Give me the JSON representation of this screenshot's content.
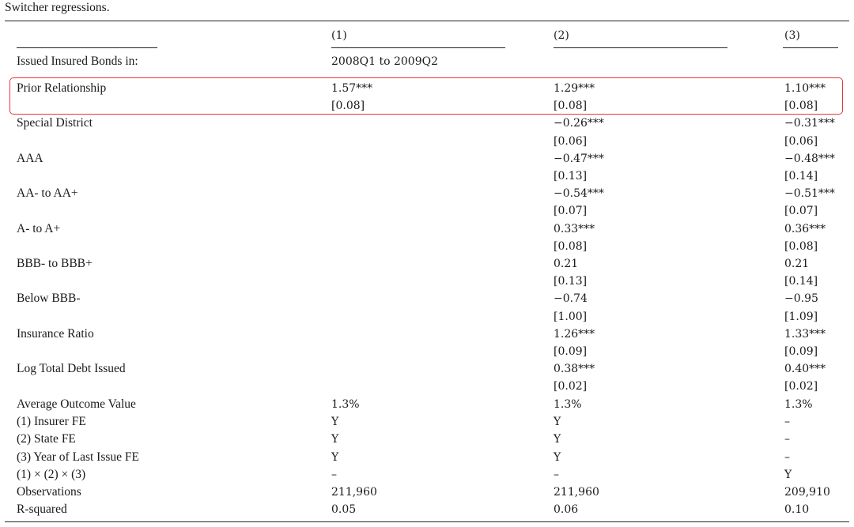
{
  "caption": "Switcher regressions.",
  "columns": [
    "(1)",
    "(2)",
    "(3)"
  ],
  "sample_label": "Issued Insured Bonds in:",
  "sample_value": "2008Q1 to 2009Q2",
  "colors": {
    "highlight": "#e0393e"
  },
  "rows": [
    {
      "label": "Prior Relationship",
      "c1": "1.57***",
      "c2": "1.29***",
      "c3": "1.10***",
      "se1": "[0.08]",
      "se2": "[0.08]",
      "se3": "[0.08]"
    },
    {
      "label": "Special District",
      "c1": "",
      "c2": "−0.26***",
      "c3": "−0.31***",
      "se1": "",
      "se2": "[0.06]",
      "se3": "[0.06]"
    },
    {
      "label": "AAA",
      "c1": "",
      "c2": "−0.47***",
      "c3": "−0.48***",
      "se1": "",
      "se2": "[0.13]",
      "se3": "[0.14]"
    },
    {
      "label": "AA- to AA+",
      "c1": "",
      "c2": "−0.54***",
      "c3": "−0.51***",
      "se1": "",
      "se2": "[0.07]",
      "se3": "[0.07]"
    },
    {
      "label": "A- to A+",
      "c1": "",
      "c2": "0.33***",
      "c3": "0.36***",
      "se1": "",
      "se2": "[0.08]",
      "se3": "[0.08]"
    },
    {
      "label": "BBB- to BBB+",
      "c1": "",
      "c2": "0.21",
      "c3": "0.21",
      "se1": "",
      "se2": "[0.13]",
      "se3": "[0.14]"
    },
    {
      "label": "Below BBB-",
      "c1": "",
      "c2": "−0.74",
      "c3": "−0.95",
      "se1": "",
      "se2": "[1.00]",
      "se3": "[1.09]"
    },
    {
      "label": "Insurance Ratio",
      "c1": "",
      "c2": "1.26***",
      "c3": "1.33***",
      "se1": "",
      "se2": "[0.09]",
      "se3": "[0.09]"
    },
    {
      "label": "Log Total Debt Issued",
      "c1": "",
      "c2": "0.38***",
      "c3": "0.40***",
      "se1": "",
      "se2": "[0.02]",
      "se3": "[0.02]"
    }
  ],
  "footer": [
    {
      "label": "Average Outcome Value",
      "c1": "1.3%",
      "c2": "1.3%",
      "c3": "1.3%"
    },
    {
      "label": "(1) Insurer FE",
      "c1": "Y",
      "c2": "Y",
      "c3": "–"
    },
    {
      "label": "(2) State FE",
      "c1": "Y",
      "c2": "Y",
      "c3": "–"
    },
    {
      "label": "(3) Year of Last Issue FE",
      "c1": "Y",
      "c2": "Y",
      "c3": "–"
    },
    {
      "label": "(1) × (2) × (3)",
      "c1": "–",
      "c2": "–",
      "c3": "Y"
    },
    {
      "label": "Observations",
      "c1": "211,960",
      "c2": "211,960",
      "c3": "209,910"
    },
    {
      "label": "R-squared",
      "c1": "0.05",
      "c2": "0.06",
      "c3": "0.10"
    }
  ]
}
